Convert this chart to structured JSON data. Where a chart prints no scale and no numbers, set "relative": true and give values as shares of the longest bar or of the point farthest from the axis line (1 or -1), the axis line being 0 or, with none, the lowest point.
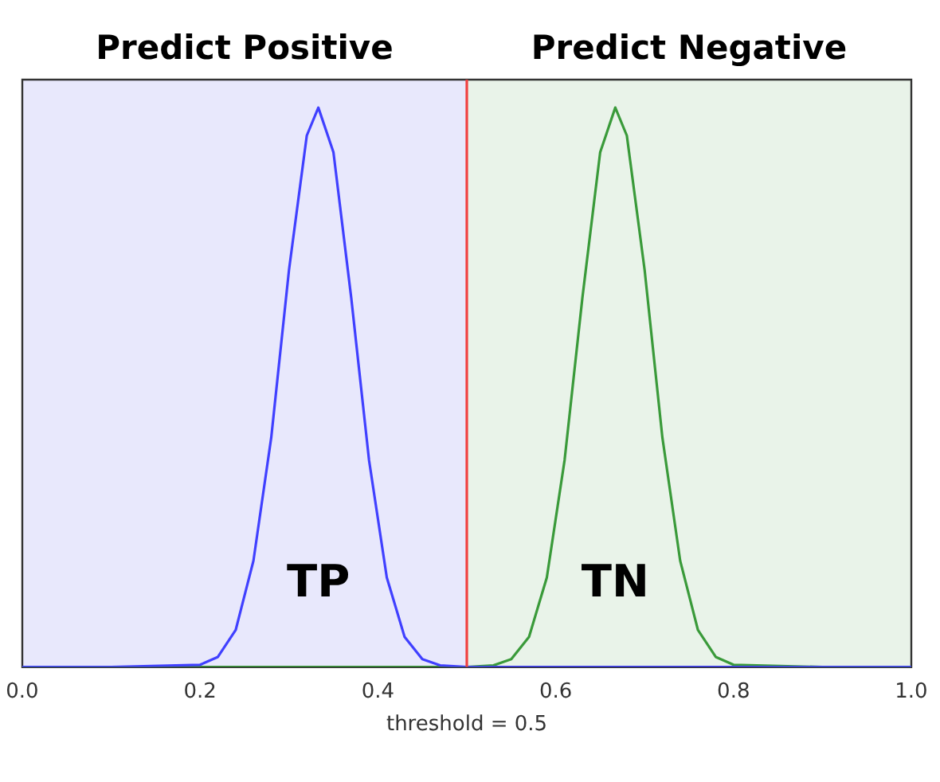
{
  "chart_data": {
    "type": "line",
    "relative": true,
    "xlabel": "threshold = 0.5",
    "tick_labels": "x",
    "grid": false,
    "legend": false,
    "marker": "none",
    "line_style": "solid",
    "xlim": [
      0,
      1
    ],
    "xticks": [
      {
        "value": 0,
        "label": "0.0"
      },
      {
        "value": 0.2,
        "label": "0.2"
      },
      {
        "value": 0.4,
        "label": "0.4"
      },
      {
        "value": 0.6,
        "label": "0.6"
      },
      {
        "value": 0.8,
        "label": "0.8"
      },
      {
        "value": 1,
        "label": "1.0"
      }
    ],
    "series": [
      {
        "color": "#4040ff",
        "x": [
          0,
          0.1,
          0.2,
          0.22,
          0.24,
          0.26,
          0.28,
          0.3,
          0.32,
          0.333,
          0.35,
          0.37,
          0.39,
          0.41,
          0.43,
          0.45,
          0.47,
          0.5,
          0.6,
          0.7,
          0.8,
          0.9,
          1
        ],
        "values": [
          0,
          0,
          0.004,
          0.018,
          0.066,
          0.19,
          0.41,
          0.71,
          0.95,
          1,
          0.92,
          0.66,
          0.37,
          0.16,
          0.054,
          0.014,
          0.003,
          0,
          0,
          0,
          0,
          0,
          0
        ]
      },
      {
        "color": "#3a9a3a",
        "x": [
          0,
          0.1,
          0.2,
          0.3,
          0.4,
          0.5,
          0.53,
          0.55,
          0.57,
          0.59,
          0.61,
          0.63,
          0.65,
          0.667,
          0.68,
          0.7,
          0.72,
          0.74,
          0.76,
          0.78,
          0.8,
          0.9,
          1
        ],
        "values": [
          0,
          0,
          0,
          0,
          0,
          0,
          0.003,
          0.014,
          0.054,
          0.16,
          0.37,
          0.66,
          0.92,
          1,
          0.95,
          0.71,
          0.41,
          0.19,
          0.066,
          0.018,
          0.004,
          0,
          0
        ]
      }
    ],
    "bands": [
      {
        "axis": "x",
        "from": 0,
        "to": 0.5,
        "label": "Predict Positive",
        "color": "#e8e8fc"
      },
      {
        "axis": "x",
        "from": 0.5,
        "to": 1,
        "label": "Predict Negative",
        "color": "#e9f3e9"
      }
    ],
    "ref_lines": [
      {
        "axis": "x",
        "value": 0.5,
        "color": "#f04040"
      }
    ],
    "annotations": [
      "TP",
      "TN"
    ]
  }
}
